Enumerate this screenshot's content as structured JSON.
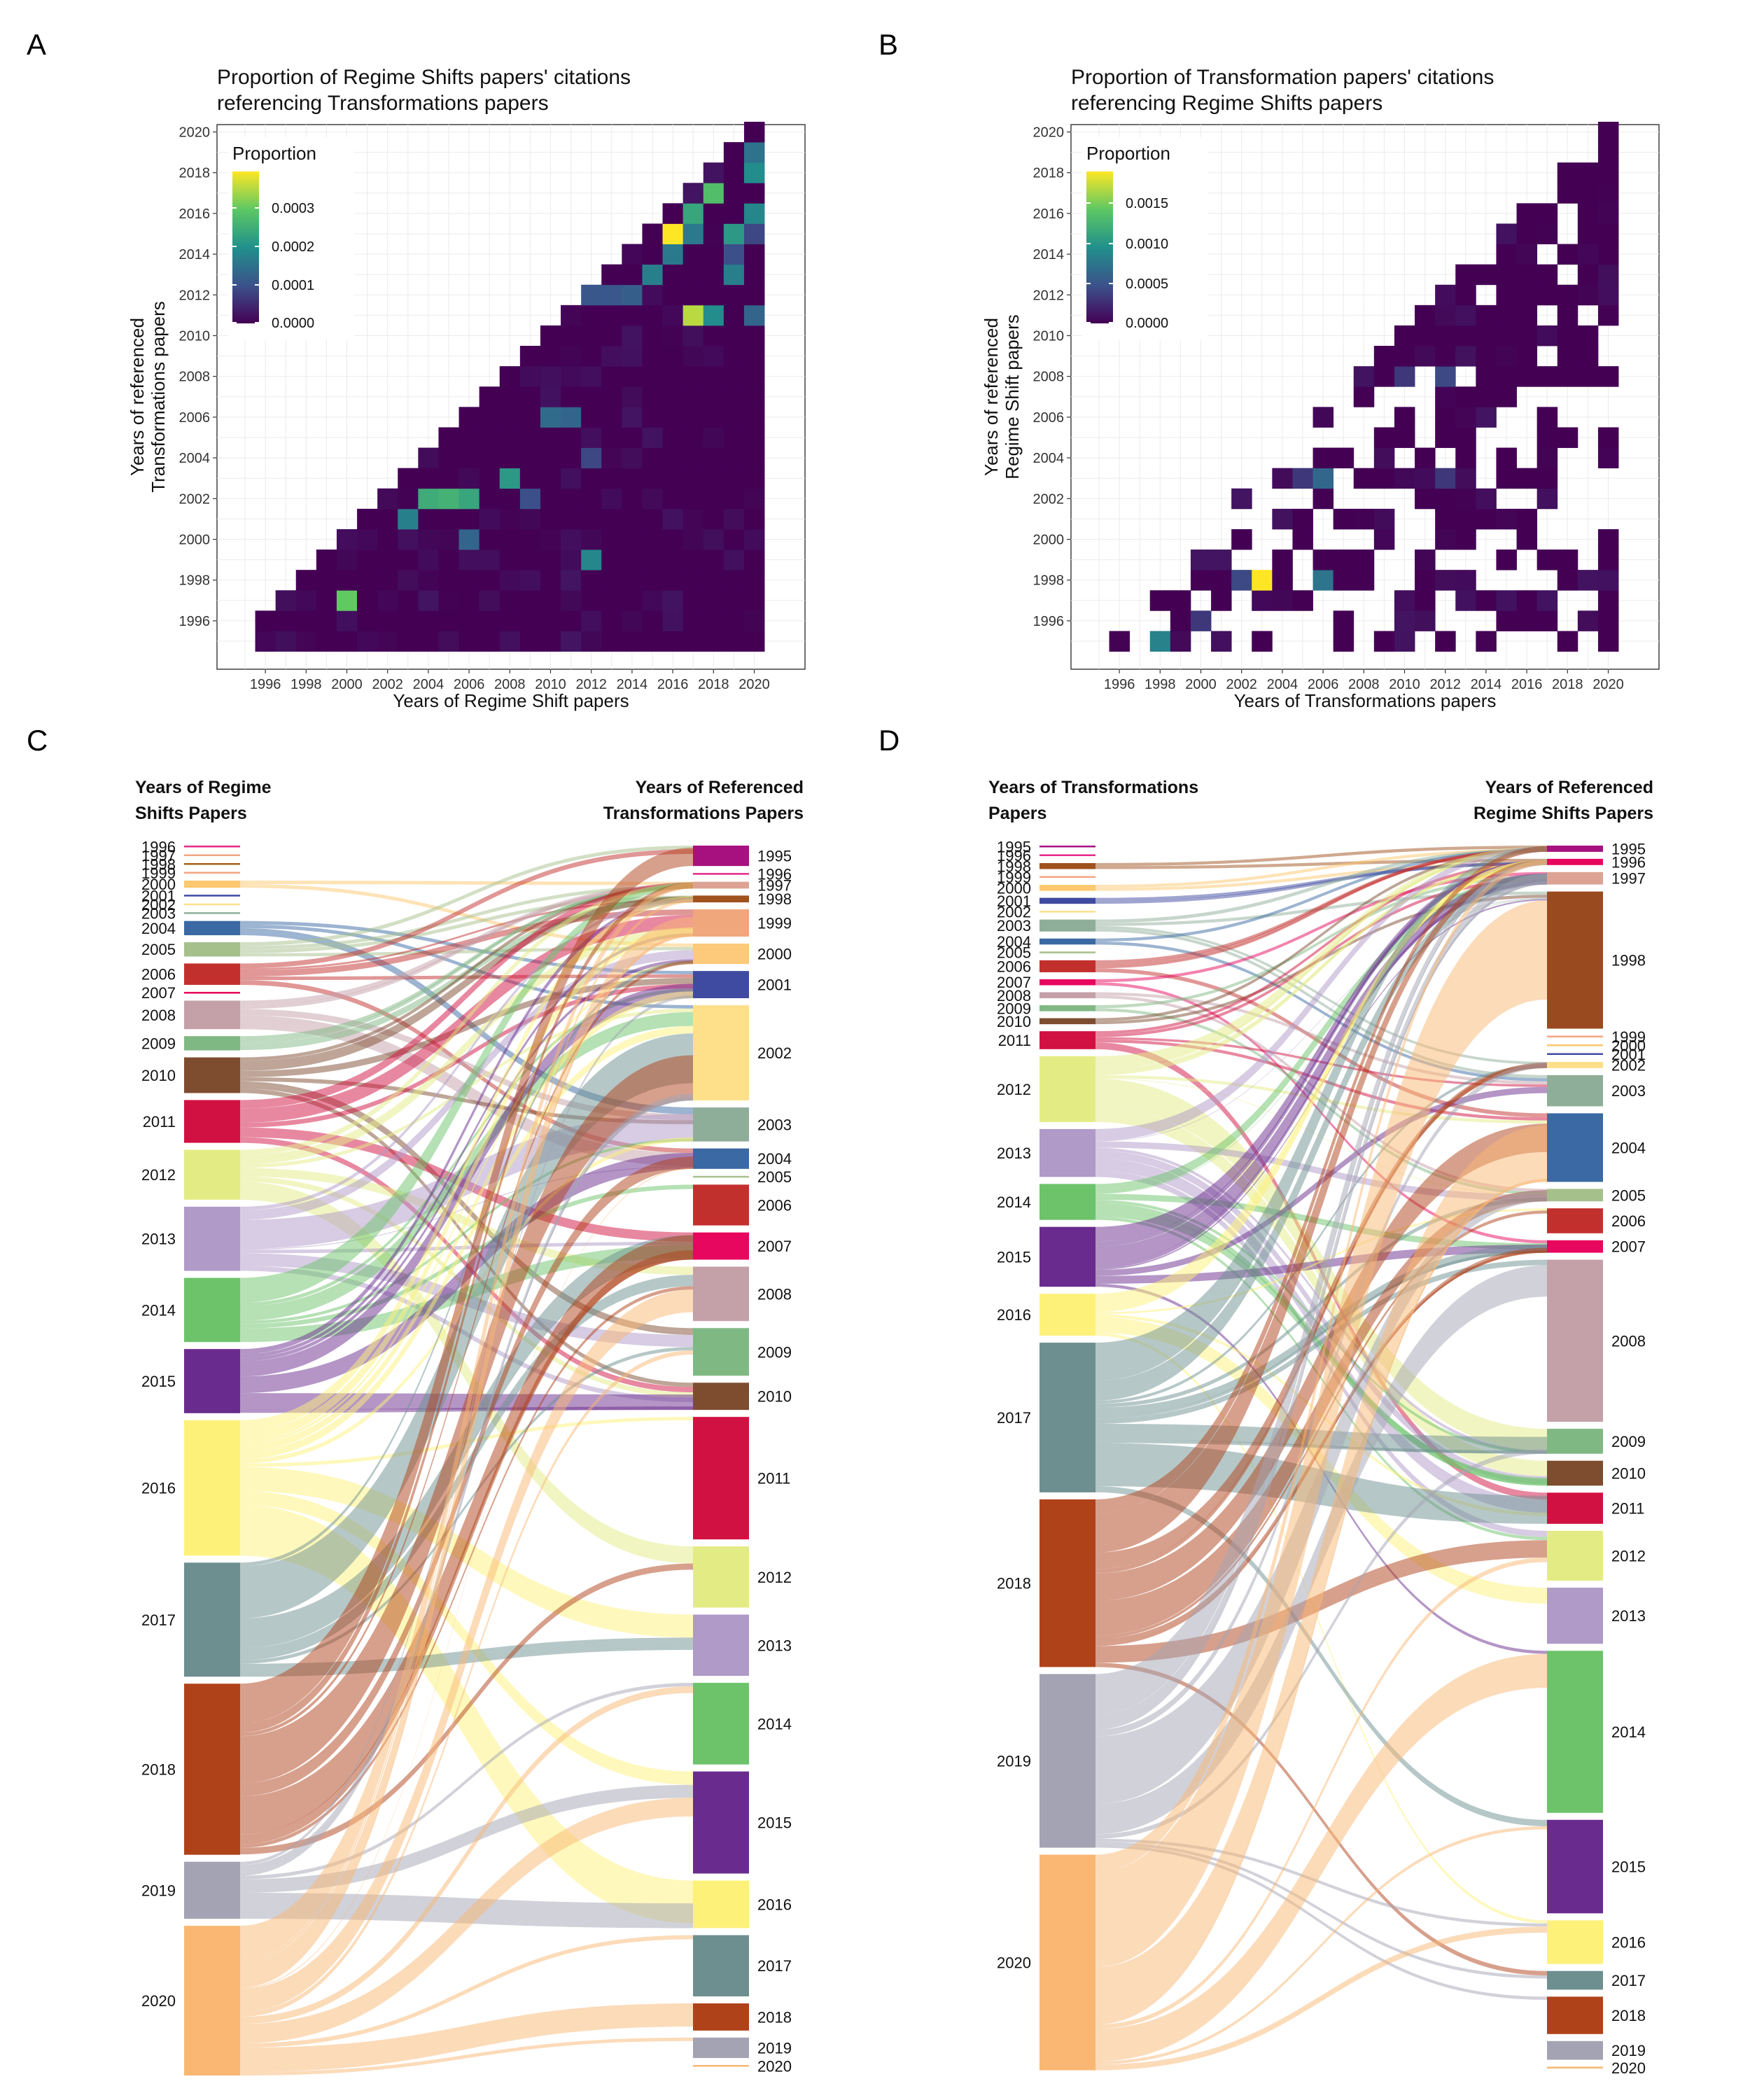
{
  "figure": {
    "panel_letters": [
      "A",
      "B",
      "C",
      "D"
    ]
  },
  "chart_data": [
    {
      "id": "A",
      "type": "heatmap",
      "title_line1": "Proportion of Regime Shifts papers' citations",
      "title_line2": "referencing Transformations papers",
      "xlabel": "Years of Regime Shift papers",
      "ylabel_line1": "Years of referenced",
      "ylabel_line2": "Transformations papers",
      "x_ticks": [
        "1996",
        "1998",
        "2000",
        "2002",
        "2004",
        "2006",
        "2008",
        "2010",
        "2012",
        "2014",
        "2016",
        "2018",
        "2020"
      ],
      "y_ticks": [
        "1996",
        "1998",
        "2000",
        "2002",
        "2004",
        "2006",
        "2008",
        "2010",
        "2012",
        "2014",
        "2016",
        "2018",
        "2020"
      ],
      "x_range": [
        1996,
        2020
      ],
      "y_range": [
        1995,
        2020
      ],
      "legend_title": "Proportion",
      "legend_ticks": [
        "0.0003",
        "0.0002",
        "0.0001",
        "0.0000"
      ],
      "color_max": 0.00037,
      "hot_cells": [
        {
          "x": 2016,
          "y": 2015,
          "v": 0.00037
        },
        {
          "x": 2017,
          "y": 2011,
          "v": 0.00033
        },
        {
          "x": 2000,
          "y": 1997,
          "v": 0.00028
        },
        {
          "x": 2017,
          "y": 2016,
          "v": 0.00022
        },
        {
          "x": 2018,
          "y": 2017,
          "v": 0.00026
        },
        {
          "x": 2019,
          "y": 2015,
          "v": 0.0002
        },
        {
          "x": 2020,
          "y": 2018,
          "v": 0.00018
        },
        {
          "x": 2020,
          "y": 2016,
          "v": 0.00017
        },
        {
          "x": 2005,
          "y": 2002,
          "v": 0.00024
        },
        {
          "x": 2004,
          "y": 2002,
          "v": 0.00023
        },
        {
          "x": 2006,
          "y": 2002,
          "v": 0.00022
        },
        {
          "x": 2008,
          "y": 2003,
          "v": 0.0002
        },
        {
          "x": 2003,
          "y": 2001,
          "v": 0.00016
        },
        {
          "x": 2012,
          "y": 1999,
          "v": 0.00017
        },
        {
          "x": 2010,
          "y": 2006,
          "v": 0.00013
        },
        {
          "x": 2011,
          "y": 2006,
          "v": 0.00012
        },
        {
          "x": 2015,
          "y": 2013,
          "v": 0.00016
        },
        {
          "x": 2016,
          "y": 2014,
          "v": 0.00015
        },
        {
          "x": 2018,
          "y": 2011,
          "v": 0.00018
        },
        {
          "x": 2019,
          "y": 2013,
          "v": 0.00016
        },
        {
          "x": 2017,
          "y": 2015,
          "v": 0.00015
        },
        {
          "x": 2020,
          "y": 2019,
          "v": 0.00014
        },
        {
          "x": 2020,
          "y": 2011,
          "v": 0.00012
        },
        {
          "x": 2012,
          "y": 2012,
          "v": 0.0001
        },
        {
          "x": 2014,
          "y": 2012,
          "v": 0.00011
        },
        {
          "x": 2013,
          "y": 2012,
          "v": 0.0001
        },
        {
          "x": 2006,
          "y": 2000,
          "v": 0.00012
        },
        {
          "x": 2009,
          "y": 2002,
          "v": 9e-05
        },
        {
          "x": 2012,
          "y": 2004,
          "v": 8e-05
        },
        {
          "x": 2019,
          "y": 2014,
          "v": 9e-05
        },
        {
          "x": 2020,
          "y": 2015,
          "v": 8e-05
        }
      ]
    },
    {
      "id": "B",
      "type": "heatmap",
      "title_line1": "Proportion of Transformation papers' citations",
      "title_line2": "referencing Regime Shifts papers",
      "xlabel": "Years of Transformations papers",
      "ylabel_line1": "Years of referenced",
      "ylabel_line2": "Regime Shift papers",
      "x_ticks": [
        "1996",
        "1998",
        "2000",
        "2002",
        "2004",
        "2006",
        "2008",
        "2010",
        "2012",
        "2014",
        "2016",
        "2018",
        "2020"
      ],
      "y_ticks": [
        "1996",
        "1998",
        "2000",
        "2002",
        "2004",
        "2006",
        "2008",
        "2010",
        "2012",
        "2014",
        "2016",
        "2018",
        "2020"
      ],
      "x_range": [
        1995,
        2020
      ],
      "y_range": [
        1995,
        2020
      ],
      "legend_title": "Proportion",
      "legend_ticks": [
        "0.0015",
        "0.0010",
        "0.0005",
        "0.0000"
      ],
      "color_max": 0.0018,
      "hot_cells": [
        {
          "x": 2003,
          "y": 1998,
          "v": 0.0018
        },
        {
          "x": 1998,
          "y": 1995,
          "v": 0.0008
        },
        {
          "x": 2006,
          "y": 1998,
          "v": 0.0007
        },
        {
          "x": 2006,
          "y": 2003,
          "v": 0.0006
        },
        {
          "x": 2002,
          "y": 1998,
          "v": 0.0004
        },
        {
          "x": 2012,
          "y": 2008,
          "v": 0.0004
        },
        {
          "x": 2000,
          "y": 1996,
          "v": 0.0003
        },
        {
          "x": 2010,
          "y": 2008,
          "v": 0.0003
        },
        {
          "x": 2012,
          "y": 2003,
          "v": 0.0003
        },
        {
          "x": 2005,
          "y": 2003,
          "v": 0.0003
        }
      ]
    },
    {
      "id": "C",
      "type": "sankey",
      "left_header_line1": "Years of Regime",
      "left_header_line2": "Shifts Papers",
      "right_header_line1": "Years of Referenced",
      "right_header_line2": "Transformations Papers",
      "left_nodes": [
        {
          "year": "1996",
          "w": 0,
          "color": "#e7298a"
        },
        {
          "year": "1997",
          "w": 0,
          "color": "#f4a582"
        },
        {
          "year": "1998",
          "w": 0,
          "color": "#a6611a"
        },
        {
          "year": "1999",
          "w": 0,
          "color": "#f4a582"
        },
        {
          "year": "2000",
          "w": 1,
          "color": "#fdc86e"
        },
        {
          "year": "2001",
          "w": 0,
          "color": "#3f4ba0"
        },
        {
          "year": "2002",
          "w": 0,
          "color": "#fee08b"
        },
        {
          "year": "2003",
          "w": 0,
          "color": "#8fae9a"
        },
        {
          "year": "2004",
          "w": 2,
          "color": "#3a69a3"
        },
        {
          "year": "2005",
          "w": 2,
          "color": "#a6c08c"
        },
        {
          "year": "2006",
          "w": 3,
          "color": "#c2302e"
        },
        {
          "year": "2007",
          "w": 0,
          "color": "#e7075e"
        },
        {
          "year": "2008",
          "w": 4,
          "color": "#c4a0a8"
        },
        {
          "year": "2009",
          "w": 2,
          "color": "#80b883"
        },
        {
          "year": "2010",
          "w": 5,
          "color": "#7e4c2f"
        },
        {
          "year": "2011",
          "w": 6,
          "color": "#d11141"
        },
        {
          "year": "2012",
          "w": 7,
          "color": "#e3ec84"
        },
        {
          "year": "2013",
          "w": 9,
          "color": "#b09ac8"
        },
        {
          "year": "2014",
          "w": 9,
          "color": "#6cc36a"
        },
        {
          "year": "2015",
          "w": 9,
          "color": "#6a2b8e"
        },
        {
          "year": "2016",
          "w": 19,
          "color": "#fdf17a"
        },
        {
          "year": "2017",
          "w": 16,
          "color": "#6e8f8f"
        },
        {
          "year": "2018",
          "w": 24,
          "color": "#b0421a"
        },
        {
          "year": "2019",
          "w": 8,
          "color": "#a3a3b3"
        },
        {
          "year": "2020",
          "w": 21,
          "color": "#f9b773"
        }
      ],
      "right_nodes": [
        {
          "year": "1995",
          "w": 3,
          "color": "#a6117f"
        },
        {
          "year": "1996",
          "w": 0,
          "color": "#e7298a"
        },
        {
          "year": "1997",
          "w": 1,
          "color": "#dca394"
        },
        {
          "year": "1998",
          "w": 1,
          "color": "#a0521d"
        },
        {
          "year": "1999",
          "w": 4,
          "color": "#f0a77c"
        },
        {
          "year": "2000",
          "w": 3,
          "color": "#fdc97a"
        },
        {
          "year": "2001",
          "w": 4,
          "color": "#3f4ba0"
        },
        {
          "year": "2002",
          "w": 14,
          "color": "#fee08b"
        },
        {
          "year": "2003",
          "w": 5,
          "color": "#8fae9a"
        },
        {
          "year": "2004",
          "w": 3,
          "color": "#3a69a3"
        },
        {
          "year": "2005",
          "w": 0,
          "color": "#a6c08c"
        },
        {
          "year": "2006",
          "w": 6,
          "color": "#c2302e"
        },
        {
          "year": "2007",
          "w": 4,
          "color": "#e7075e"
        },
        {
          "year": "2008",
          "w": 8,
          "color": "#c4a0a8"
        },
        {
          "year": "2009",
          "w": 7,
          "color": "#80b883"
        },
        {
          "year": "2010",
          "w": 4,
          "color": "#7e4c2f"
        },
        {
          "year": "2011",
          "w": 18,
          "color": "#d11141"
        },
        {
          "year": "2012",
          "w": 9,
          "color": "#e3ec84"
        },
        {
          "year": "2013",
          "w": 9,
          "color": "#b09ac8"
        },
        {
          "year": "2014",
          "w": 12,
          "color": "#6cc36a"
        },
        {
          "year": "2015",
          "w": 15,
          "color": "#6a2b8e"
        },
        {
          "year": "2016",
          "w": 7,
          "color": "#fdf17a"
        },
        {
          "year": "2017",
          "w": 9,
          "color": "#6e8f8f"
        },
        {
          "year": "2018",
          "w": 4,
          "color": "#b0421a"
        },
        {
          "year": "2019",
          "w": 3,
          "color": "#a3a3b3"
        },
        {
          "year": "2020",
          "w": 0,
          "color": "#f9b773"
        }
      ]
    },
    {
      "id": "D",
      "type": "sankey",
      "left_header_line1": "Years of Transformations",
      "left_header_line2": "Papers",
      "right_header_line1": "Years of Referenced",
      "right_header_line2": "Regime Shifts Papers",
      "left_nodes": [
        {
          "year": "1995",
          "w": 0,
          "color": "#a6117f"
        },
        {
          "year": "1996",
          "w": 0,
          "color": "#e7298a"
        },
        {
          "year": "1998",
          "w": 1,
          "color": "#a0521d"
        },
        {
          "year": "1999",
          "w": 0,
          "color": "#f4a582"
        },
        {
          "year": "2000",
          "w": 1,
          "color": "#fdc86e"
        },
        {
          "year": "2001",
          "w": 1,
          "color": "#3f4ba0"
        },
        {
          "year": "2002",
          "w": 0,
          "color": "#fee08b"
        },
        {
          "year": "2003",
          "w": 2,
          "color": "#8fae9a"
        },
        {
          "year": "2004",
          "w": 1,
          "color": "#3a69a3"
        },
        {
          "year": "2005",
          "w": 0,
          "color": "#a6c08c"
        },
        {
          "year": "2006",
          "w": 2,
          "color": "#c2302e"
        },
        {
          "year": "2007",
          "w": 1,
          "color": "#e7075e"
        },
        {
          "year": "2008",
          "w": 1,
          "color": "#c4a0a8"
        },
        {
          "year": "2009",
          "w": 1,
          "color": "#80b883"
        },
        {
          "year": "2010",
          "w": 1,
          "color": "#7e4c2f"
        },
        {
          "year": "2011",
          "w": 3,
          "color": "#d11141"
        },
        {
          "year": "2012",
          "w": 11,
          "color": "#e3ec84"
        },
        {
          "year": "2013",
          "w": 8,
          "color": "#b09ac8"
        },
        {
          "year": "2014",
          "w": 6,
          "color": "#6cc36a"
        },
        {
          "year": "2015",
          "w": 10,
          "color": "#6a2b8e"
        },
        {
          "year": "2016",
          "w": 7,
          "color": "#fdf17a"
        },
        {
          "year": "2017",
          "w": 25,
          "color": "#6e8f8f"
        },
        {
          "year": "2018",
          "w": 28,
          "color": "#b0421a"
        },
        {
          "year": "2019",
          "w": 29,
          "color": "#a3a3b3"
        },
        {
          "year": "2020",
          "w": 36,
          "color": "#f9b773"
        }
      ],
      "right_nodes": [
        {
          "year": "1995",
          "w": 1,
          "color": "#a6117f"
        },
        {
          "year": "1996",
          "w": 1,
          "color": "#e7075e"
        },
        {
          "year": "1997",
          "w": 2,
          "color": "#dca394"
        },
        {
          "year": "1998",
          "w": 22,
          "color": "#9a4a1f"
        },
        {
          "year": "1999",
          "w": 0,
          "color": "#f4a582"
        },
        {
          "year": "2000",
          "w": 0,
          "color": "#fdc86e"
        },
        {
          "year": "2001",
          "w": 0,
          "color": "#3f4ba0"
        },
        {
          "year": "2002",
          "w": 1,
          "color": "#fee08b"
        },
        {
          "year": "2003",
          "w": 5,
          "color": "#8fae9a"
        },
        {
          "year": "2004",
          "w": 11,
          "color": "#3a69a3"
        },
        {
          "year": "2005",
          "w": 2,
          "color": "#a6c08c"
        },
        {
          "year": "2006",
          "w": 4,
          "color": "#c2302e"
        },
        {
          "year": "2007",
          "w": 2,
          "color": "#e7075e"
        },
        {
          "year": "2008",
          "w": 26,
          "color": "#c4a0a8"
        },
        {
          "year": "2009",
          "w": 4,
          "color": "#80b883"
        },
        {
          "year": "2010",
          "w": 4,
          "color": "#7e4c2f"
        },
        {
          "year": "2011",
          "w": 5,
          "color": "#d11141"
        },
        {
          "year": "2012",
          "w": 8,
          "color": "#e3ec84"
        },
        {
          "year": "2013",
          "w": 9,
          "color": "#b09ac8"
        },
        {
          "year": "2014",
          "w": 26,
          "color": "#6cc36a"
        },
        {
          "year": "2015",
          "w": 15,
          "color": "#6a2b8e"
        },
        {
          "year": "2016",
          "w": 7,
          "color": "#fdf17a"
        },
        {
          "year": "2017",
          "w": 3,
          "color": "#6e8f8f"
        },
        {
          "year": "2018",
          "w": 6,
          "color": "#b0421a"
        },
        {
          "year": "2019",
          "w": 3,
          "color": "#a3a3b3"
        },
        {
          "year": "2020",
          "w": 0,
          "color": "#f9b773"
        }
      ]
    }
  ]
}
